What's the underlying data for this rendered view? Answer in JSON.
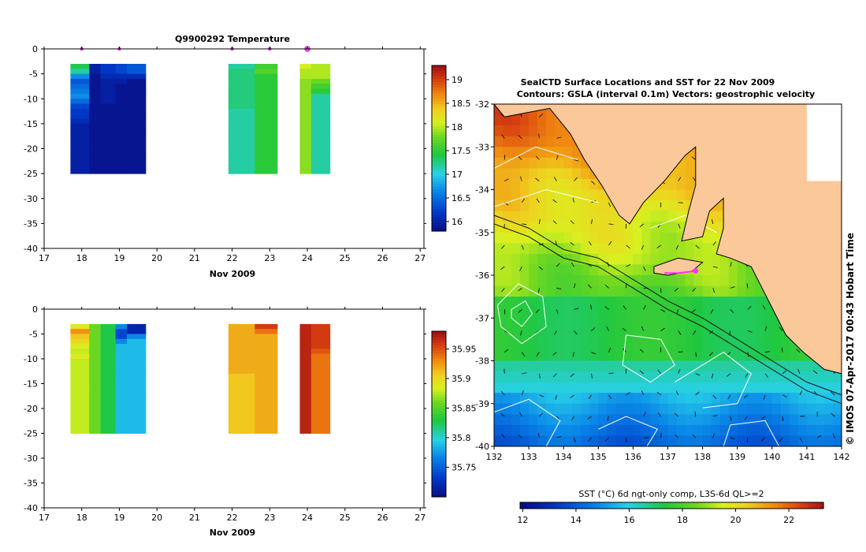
{
  "colors": {
    "land": "#fbc89a",
    "mask": "#ffffff",
    "contour": "#ffffff",
    "bathy": "#000000",
    "track": "#ff33ff"
  },
  "chart_data": [
    {
      "type": "heatmap",
      "title": "Q9900292  Temperature",
      "xlabel": "Nov 2009",
      "ylabel": "",
      "xlim": [
        17,
        27.1
      ],
      "ylim": [
        -40,
        0
      ],
      "xticks": [
        17,
        18,
        19,
        20,
        21,
        22,
        23,
        24,
        25,
        26,
        27
      ],
      "yticks": [
        0,
        -5,
        -10,
        -15,
        -20,
        -25,
        -30,
        -35,
        -40
      ],
      "profile_dates": [
        18.0,
        19.0,
        22.0,
        23.0,
        24.0
      ],
      "colorbar": {
        "ticks": [
          19,
          18.5,
          18,
          17.5,
          17,
          16.5,
          16
        ],
        "range": [
          15.8,
          19.3
        ]
      },
      "profiles": [
        {
          "x0": 17.7,
          "x1": 18.2,
          "values": [
            17.4,
            17.2,
            16.7,
            16.4,
            16.5,
            16.6,
            16.7,
            16.5,
            16.3,
            16.2,
            16.2,
            16.1,
            16.0,
            16.0,
            16.0,
            16.0,
            16.0,
            16.0,
            16.0,
            16.0,
            16.0,
            16.0
          ]
        },
        {
          "x0": 18.2,
          "x1": 18.5,
          "values": [
            16.0,
            16.0,
            15.9,
            15.9,
            15.9,
            15.9,
            15.9,
            15.9,
            15.9,
            15.9,
            15.9,
            15.9,
            15.9,
            15.9,
            15.9,
            15.9,
            15.9,
            15.9,
            15.9,
            15.9,
            15.9,
            15.9
          ]
        },
        {
          "x0": 18.5,
          "x1": 18.9,
          "values": [
            16.2,
            16.2,
            16.1,
            16.0,
            16.0,
            16.0,
            16.0,
            16.0,
            15.9,
            15.9,
            15.9,
            15.9,
            15.9,
            15.9,
            15.9,
            15.9,
            15.9,
            15.9,
            15.9,
            15.9,
            15.9,
            15.9
          ]
        },
        {
          "x0": 18.9,
          "x1": 19.2,
          "values": [
            16.3,
            16.3,
            16.1,
            16.0,
            15.9,
            15.9,
            15.9,
            15.9,
            15.9,
            15.9,
            15.9,
            15.9,
            15.9,
            15.9,
            15.9,
            15.9,
            15.9,
            15.9,
            15.9,
            15.9,
            15.9,
            15.9
          ]
        },
        {
          "x0": 19.2,
          "x1": 19.7,
          "values": [
            16.4,
            16.4,
            16.1,
            15.9,
            15.9,
            15.9,
            15.9,
            15.9,
            15.9,
            15.9,
            15.9,
            15.9,
            15.9,
            15.9,
            15.9,
            15.9,
            15.9,
            15.9,
            15.9,
            15.9,
            15.9,
            15.9
          ]
        },
        {
          "x0": 21.9,
          "x1": 22.6,
          "values": [
            17.2,
            17.3,
            17.3,
            17.3,
            17.3,
            17.3,
            17.3,
            17.3,
            17.3,
            17.2,
            17.2,
            17.2,
            17.2,
            17.2,
            17.2,
            17.2,
            17.2,
            17.2,
            17.2,
            17.2,
            17.2,
            17.2
          ]
        },
        {
          "x0": 22.6,
          "x1": 23.2,
          "values": [
            17.6,
            17.7,
            17.5,
            17.5,
            17.5,
            17.5,
            17.5,
            17.5,
            17.5,
            17.5,
            17.5,
            17.5,
            17.5,
            17.5,
            17.5,
            17.5,
            17.5,
            17.5,
            17.5,
            17.5,
            17.5,
            17.5
          ]
        },
        {
          "x0": 23.8,
          "x1": 24.1,
          "values": [
            18.1,
            18.0,
            18.0,
            17.9,
            17.9,
            17.9,
            17.9,
            17.9,
            17.9,
            17.9,
            17.9,
            17.9,
            17.9,
            17.9,
            17.9,
            17.9,
            17.9,
            17.9,
            17.9,
            17.9,
            17.9,
            17.9
          ]
        },
        {
          "x0": 24.1,
          "x1": 24.6,
          "values": [
            18.0,
            18.0,
            18.0,
            17.8,
            17.6,
            17.5,
            17.2,
            17.2,
            17.2,
            17.2,
            17.2,
            17.2,
            17.2,
            17.2,
            17.2,
            17.2,
            17.2,
            17.2,
            17.2,
            17.2,
            17.2,
            17.2
          ]
        }
      ]
    },
    {
      "type": "heatmap",
      "title": "",
      "xlabel": "Nov 2009",
      "ylabel": "",
      "xlim": [
        17,
        27.1
      ],
      "ylim": [
        -40,
        0
      ],
      "xticks": [
        17,
        18,
        19,
        20,
        21,
        22,
        23,
        24,
        25,
        26,
        27
      ],
      "yticks": [
        0,
        -5,
        -10,
        -15,
        -20,
        -25,
        -30,
        -35,
        -40
      ],
      "colorbar": {
        "ticks": [
          35.95,
          35.9,
          35.85,
          35.8,
          35.75
        ],
        "range": [
          35.7,
          35.98
        ]
      },
      "profiles": [
        {
          "x0": 17.7,
          "x1": 18.2,
          "values": [
            35.89,
            35.93,
            35.91,
            35.9,
            35.89,
            35.88,
            35.89,
            35.88,
            35.88,
            35.88,
            35.88,
            35.88,
            35.88,
            35.88,
            35.88,
            35.88,
            35.88,
            35.88,
            35.88,
            35.88,
            35.88,
            35.88
          ]
        },
        {
          "x0": 18.2,
          "x1": 18.5,
          "values": [
            35.86,
            35.86,
            35.86,
            35.86,
            35.86,
            35.86,
            35.86,
            35.86,
            35.86,
            35.86,
            35.86,
            35.86,
            35.86,
            35.86,
            35.86,
            35.86,
            35.86,
            35.86,
            35.86,
            35.86,
            35.86,
            35.86
          ]
        },
        {
          "x0": 18.5,
          "x1": 18.9,
          "values": [
            35.83,
            35.83,
            35.83,
            35.83,
            35.83,
            35.83,
            35.83,
            35.83,
            35.83,
            35.83,
            35.83,
            35.83,
            35.83,
            35.83,
            35.83,
            35.83,
            35.83,
            35.83,
            35.83,
            35.83,
            35.83,
            35.83
          ]
        },
        {
          "x0": 18.9,
          "x1": 19.2,
          "values": [
            35.77,
            35.74,
            35.74,
            35.77,
            35.79,
            35.79,
            35.79,
            35.79,
            35.79,
            35.79,
            35.79,
            35.79,
            35.79,
            35.79,
            35.79,
            35.79,
            35.79,
            35.79,
            35.79,
            35.79,
            35.79,
            35.79
          ]
        },
        {
          "x0": 19.2,
          "x1": 19.7,
          "values": [
            35.72,
            35.72,
            35.77,
            35.79,
            35.79,
            35.79,
            35.79,
            35.79,
            35.79,
            35.79,
            35.79,
            35.79,
            35.79,
            35.79,
            35.79,
            35.79,
            35.79,
            35.79,
            35.79,
            35.79,
            35.79,
            35.79
          ]
        },
        {
          "x0": 21.9,
          "x1": 22.6,
          "values": [
            35.92,
            35.92,
            35.92,
            35.92,
            35.92,
            35.92,
            35.92,
            35.92,
            35.92,
            35.92,
            35.91,
            35.91,
            35.91,
            35.91,
            35.91,
            35.91,
            35.91,
            35.91,
            35.91,
            35.91,
            35.91,
            35.91
          ]
        },
        {
          "x0": 22.6,
          "x1": 23.2,
          "values": [
            35.96,
            35.94,
            35.92,
            35.92,
            35.92,
            35.92,
            35.92,
            35.92,
            35.92,
            35.92,
            35.92,
            35.92,
            35.92,
            35.92,
            35.92,
            35.92,
            35.92,
            35.92,
            35.92,
            35.92,
            35.92,
            35.92
          ]
        },
        {
          "x0": 23.8,
          "x1": 24.1,
          "values": [
            35.97,
            35.97,
            35.97,
            35.97,
            35.97,
            35.97,
            35.97,
            35.97,
            35.97,
            35.97,
            35.97,
            35.97,
            35.97,
            35.97,
            35.97,
            35.97,
            35.97,
            35.97,
            35.97,
            35.97,
            35.97,
            35.97
          ]
        },
        {
          "x0": 24.1,
          "x1": 24.6,
          "values": [
            35.96,
            35.96,
            35.96,
            35.96,
            35.96,
            35.95,
            35.94,
            35.94,
            35.94,
            35.94,
            35.94,
            35.94,
            35.94,
            35.94,
            35.94,
            35.94,
            35.94,
            35.94,
            35.94,
            35.94,
            35.94,
            35.94
          ]
        }
      ]
    },
    {
      "type": "heatmap",
      "title": "SeaICTD Surface Locations and SST for 22 Nov 2009",
      "subtitle": "Contours: GSLA (interval 0.1m) Vectors: geostrophic velocity",
      "xlabel": "",
      "ylabel": "",
      "xlim": [
        132,
        142
      ],
      "ylim": [
        -40,
        -32
      ],
      "xticks": [
        132,
        133,
        134,
        135,
        136,
        137,
        138,
        139,
        140,
        141,
        142
      ],
      "yticks": [
        -32,
        -33,
        -34,
        -35,
        -36,
        -37,
        -38,
        -39,
        -40
      ],
      "colorbar": {
        "label": "SST (°C) 6d ngt-only comp, L3S-6d QL>=2",
        "ticks": [
          12,
          14,
          16,
          18,
          20,
          22
        ],
        "range": [
          11.9,
          23.3
        ]
      },
      "coastline": [
        [
          132.0,
          -32.0
        ],
        [
          132.3,
          -32.3
        ],
        [
          133.6,
          -32.1
        ],
        [
          134.2,
          -32.7
        ],
        [
          134.6,
          -33.3
        ],
        [
          135.1,
          -33.9
        ],
        [
          135.6,
          -34.6
        ],
        [
          135.9,
          -34.8
        ],
        [
          136.3,
          -34.3
        ],
        [
          136.9,
          -33.8
        ],
        [
          137.5,
          -33.2
        ],
        [
          137.8,
          -33.0
        ],
        [
          137.8,
          -33.9
        ],
        [
          137.6,
          -34.5
        ],
        [
          137.4,
          -35.2
        ],
        [
          138.0,
          -35.1
        ],
        [
          138.2,
          -34.5
        ],
        [
          138.6,
          -34.2
        ],
        [
          138.6,
          -34.9
        ],
        [
          138.4,
          -35.5
        ],
        [
          138.8,
          -35.6
        ],
        [
          139.4,
          -35.8
        ],
        [
          139.9,
          -36.6
        ],
        [
          140.4,
          -37.4
        ],
        [
          140.9,
          -37.8
        ],
        [
          141.5,
          -38.2
        ],
        [
          142.0,
          -38.3
        ]
      ],
      "kangaroo_island": [
        [
          136.6,
          -35.8
        ],
        [
          137.3,
          -35.6
        ],
        [
          138.0,
          -35.7
        ],
        [
          137.7,
          -35.9
        ],
        [
          137.0,
          -36.0
        ],
        [
          136.6,
          -35.95
        ]
      ],
      "inland_mask": [
        [
          141.0,
          -32.0
        ],
        [
          142.0,
          -32.0
        ],
        [
          142.0,
          -33.8
        ],
        [
          141.0,
          -33.8
        ]
      ],
      "gsla_contours": [
        [
          [
            132.1,
            -36.7
          ],
          [
            132.7,
            -36.2
          ],
          [
            133.4,
            -36.5
          ],
          [
            133.5,
            -37.2
          ],
          [
            132.8,
            -37.6
          ],
          [
            132.2,
            -37.2
          ],
          [
            132.1,
            -36.7
          ]
        ],
        [
          [
            132.5,
            -36.8
          ],
          [
            132.9,
            -36.6
          ],
          [
            133.1,
            -36.9
          ],
          [
            132.8,
            -37.2
          ],
          [
            132.5,
            -37.0
          ],
          [
            132.5,
            -36.8
          ]
        ],
        [
          [
            135.8,
            -37.4
          ],
          [
            136.8,
            -37.5
          ],
          [
            137.2,
            -38.1
          ],
          [
            136.5,
            -38.5
          ],
          [
            135.7,
            -38.1
          ],
          [
            135.8,
            -37.4
          ]
        ],
        [
          [
            132.0,
            -39.2
          ],
          [
            133.0,
            -38.9
          ],
          [
            133.9,
            -39.4
          ],
          [
            133.5,
            -40.0
          ]
        ],
        [
          [
            135.0,
            -39.6
          ],
          [
            135.8,
            -39.3
          ],
          [
            136.7,
            -39.6
          ],
          [
            136.4,
            -40.0
          ]
        ],
        [
          [
            138.6,
            -40.0
          ],
          [
            138.8,
            -39.5
          ],
          [
            139.8,
            -39.4
          ],
          [
            140.2,
            -40.0
          ]
        ],
        [
          [
            132.0,
            -34.4
          ],
          [
            133.5,
            -34.0
          ],
          [
            135.0,
            -34.3
          ]
        ],
        [
          [
            132.0,
            -33.5
          ],
          [
            133.2,
            -33.0
          ],
          [
            134.4,
            -33.3
          ]
        ],
        [
          [
            136.5,
            -34.9
          ],
          [
            137.5,
            -34.6
          ],
          [
            138.4,
            -35.0
          ]
        ],
        [
          [
            137.2,
            -38.5
          ],
          [
            138.6,
            -37.8
          ],
          [
            139.4,
            -38.3
          ],
          [
            139.0,
            -39.0
          ],
          [
            138.0,
            -39.1
          ]
        ]
      ],
      "bathymetry": [
        [
          [
            132.0,
            -34.6
          ],
          [
            133.0,
            -34.9
          ],
          [
            134.0,
            -35.4
          ],
          [
            135.0,
            -35.6
          ],
          [
            136.0,
            -36.1
          ],
          [
            137.0,
            -36.6
          ],
          [
            138.0,
            -37.0
          ],
          [
            139.0,
            -37.5
          ],
          [
            140.0,
            -38.0
          ],
          [
            141.0,
            -38.5
          ],
          [
            142.0,
            -38.8
          ]
        ],
        [
          [
            132.0,
            -34.8
          ],
          [
            133.0,
            -35.1
          ],
          [
            134.0,
            -35.6
          ],
          [
            135.0,
            -35.8
          ],
          [
            136.0,
            -36.3
          ],
          [
            137.0,
            -36.8
          ],
          [
            138.0,
            -37.2
          ],
          [
            139.0,
            -37.7
          ],
          [
            140.0,
            -38.2
          ],
          [
            141.0,
            -38.7
          ],
          [
            142.0,
            -39.0
          ]
        ]
      ],
      "float_track": [
        [
          136.9,
          -35.95
        ],
        [
          137.3,
          -35.95
        ],
        [
          137.8,
          -35.9
        ]
      ],
      "float_position": [
        137.8,
        -35.9
      ]
    }
  ],
  "credit": "© IMOS 07-Apr-2017 00:43 Hobart Time"
}
